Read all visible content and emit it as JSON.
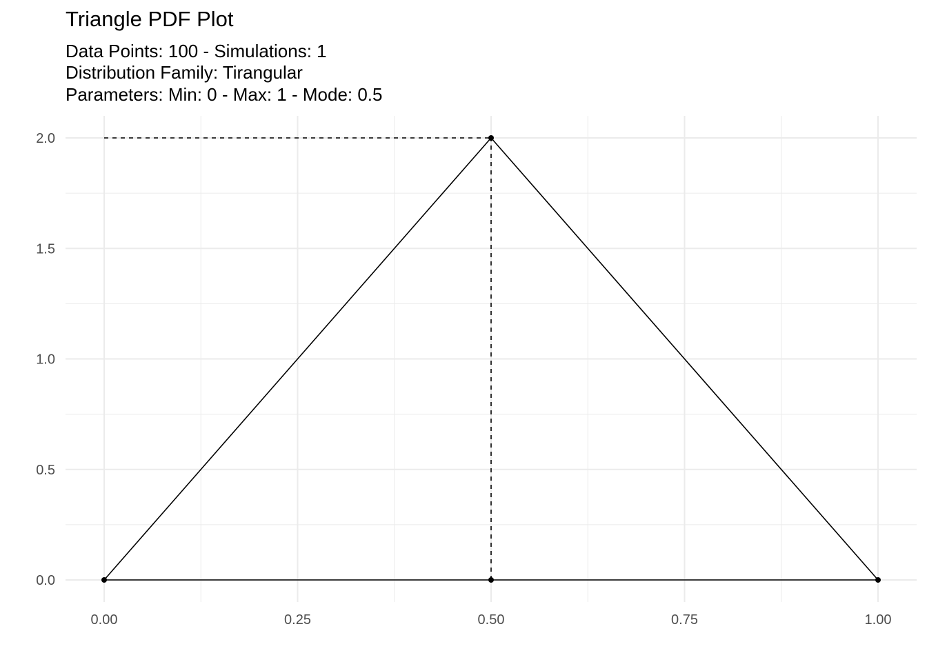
{
  "chart_data": {
    "type": "line",
    "title": "Triangle PDF Plot",
    "subtitle_lines": [
      "Data Points: 100 - Simulations: 1",
      "Distribution Family: Tirangular",
      "Parameters: Min: 0 - Max: 1 - Mode: 0.5"
    ],
    "xlabel": "",
    "ylabel": "",
    "xlim": [
      0,
      1
    ],
    "ylim": [
      0,
      2
    ],
    "x_ticks": [
      "0.00",
      "0.25",
      "0.50",
      "0.75",
      "1.00"
    ],
    "y_ticks": [
      "0.0",
      "0.5",
      "1.0",
      "1.5",
      "2.0"
    ],
    "grid": true,
    "series": [
      {
        "x": [
          0,
          0.5,
          1,
          0.5,
          0
        ],
        "y": [
          0,
          2,
          0,
          0,
          0
        ]
      }
    ],
    "points": [
      {
        "x": 0,
        "y": 0
      },
      {
        "x": 0.5,
        "y": 2
      },
      {
        "x": 1,
        "y": 0
      },
      {
        "x": 0.5,
        "y": 0
      }
    ],
    "reference_lines": [
      {
        "style": "dashed",
        "from": {
          "x": 0,
          "y": 2
        },
        "to": {
          "x": 0.5,
          "y": 2
        }
      },
      {
        "style": "dashed",
        "from": {
          "x": 0.5,
          "y": 0
        },
        "to": {
          "x": 0.5,
          "y": 2
        }
      }
    ],
    "colors": {
      "line": "#000000",
      "grid": "#ebebeb",
      "tick_text": "#4d4d4d",
      "background": "#ffffff"
    }
  }
}
